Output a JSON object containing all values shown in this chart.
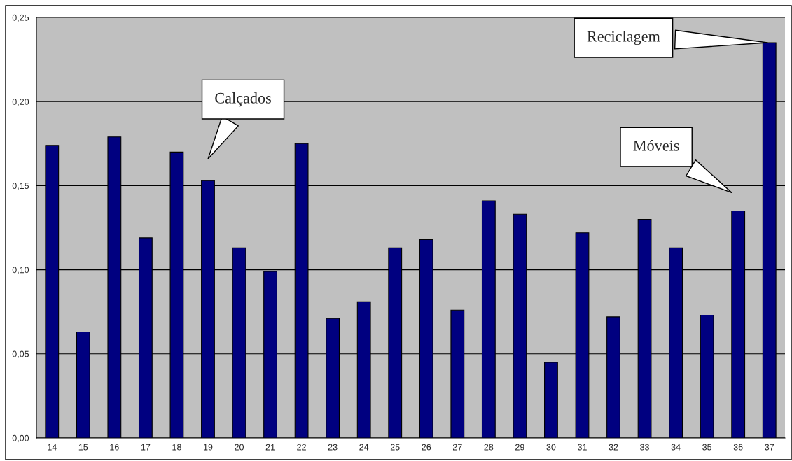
{
  "chart_data": {
    "type": "bar",
    "categories": [
      "14",
      "15",
      "16",
      "17",
      "18",
      "19",
      "20",
      "21",
      "22",
      "23",
      "24",
      "25",
      "26",
      "27",
      "28",
      "29",
      "30",
      "31",
      "32",
      "33",
      "34",
      "35",
      "36",
      "37"
    ],
    "values": [
      0.174,
      0.063,
      0.179,
      0.119,
      0.17,
      0.153,
      0.113,
      0.099,
      0.175,
      0.071,
      0.081,
      0.113,
      0.118,
      0.076,
      0.141,
      0.133,
      0.045,
      0.122,
      0.072,
      0.13,
      0.113,
      0.073,
      0.135,
      0.235
    ],
    "color": "#000080",
    "ylim": [
      0,
      0.25
    ],
    "yticks": [
      {
        "value": 0,
        "label": "0,00"
      },
      {
        "value": 0.05,
        "label": "0,05"
      },
      {
        "value": 0.1,
        "label": "0,10"
      },
      {
        "value": 0.15,
        "label": "0,15"
      },
      {
        "value": 0.2,
        "label": "0,20"
      },
      {
        "value": 0.25,
        "label": "0,25"
      }
    ],
    "grid": "y",
    "annotations": [
      "Calçados",
      "Móveis",
      {
        "text": "Reciclagem",
        "x": "37",
        "y": 0.235
      }
    ]
  }
}
